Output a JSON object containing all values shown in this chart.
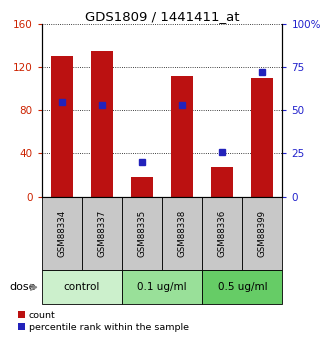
{
  "title": "GDS1809 / 1441411_at",
  "samples": [
    "GSM88334",
    "GSM88337",
    "GSM88335",
    "GSM88338",
    "GSM88336",
    "GSM88399"
  ],
  "groups": [
    {
      "label": "control",
      "indices": [
        0,
        1
      ],
      "color": "#ccf0cc"
    },
    {
      "label": "0.1 ug/ml",
      "indices": [
        2,
        3
      ],
      "color": "#99e099"
    },
    {
      "label": "0.5 ug/ml",
      "indices": [
        4,
        5
      ],
      "color": "#66cc66"
    }
  ],
  "red_values": [
    130,
    135,
    18,
    112,
    27,
    110
  ],
  "blue_values": [
    55,
    53,
    20,
    53,
    26,
    72
  ],
  "left_ylim": [
    0,
    160
  ],
  "right_ylim": [
    0,
    100
  ],
  "left_yticks": [
    0,
    40,
    80,
    120,
    160
  ],
  "right_yticks": [
    0,
    25,
    50,
    75,
    100
  ],
  "bar_color": "#bb1111",
  "marker_color": "#2222bb",
  "label_bg_color": "#c8c8c8",
  "title_color": "#000000",
  "left_tick_color": "#cc2200",
  "right_tick_color": "#2222cc"
}
